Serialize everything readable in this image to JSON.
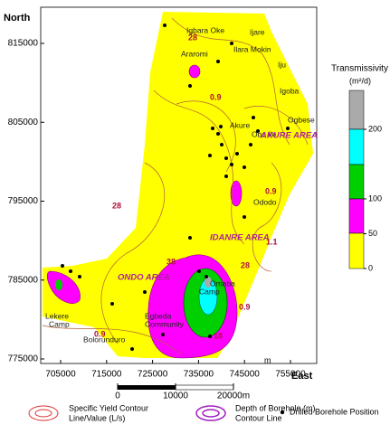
{
  "axes": {
    "y_label": "North",
    "yticks": [
      815000,
      805000,
      795000,
      785000,
      775000
    ],
    "x_label": "East",
    "xticks": [
      705000,
      715000,
      725000,
      735000,
      745000,
      755000
    ],
    "unit": "m"
  },
  "places": [
    "Igbara Oke",
    "Ijare",
    "Ilara Mokin",
    "Araromi",
    "Iju",
    "Igoba",
    "Oba Ile",
    "Ogbese",
    "Akure",
    "Ododo",
    "Omaba",
    "Camp",
    "Egbeda",
    "Community",
    "Lekere",
    "Camp",
    "Bolorunduro"
  ],
  "areas": [
    "AKURE AREA",
    "IDANRE AREA",
    "ONDO AREA"
  ],
  "contour_labels": [
    "28",
    "28",
    "28",
    "0.9",
    "0.9",
    "0.9",
    "0.9",
    "1.1",
    "38",
    "18"
  ],
  "colorbar": {
    "title": "Transmissivity",
    "unit": "(m²/d)",
    "ticks": [
      200,
      100,
      50,
      0
    ]
  },
  "scale_bar": {
    "ticks": [
      0,
      10000,
      {
        "value": 20000,
        "label": "20000m"
      }
    ]
  },
  "legend": {
    "specific_yield": [
      "Specific Yield Contour",
      "Line/Value (L/s)"
    ],
    "depth": [
      "Depth of Borehole (m)",
      "Contour Line"
    ],
    "borehole": "Drilled Borehole Position"
  }
}
